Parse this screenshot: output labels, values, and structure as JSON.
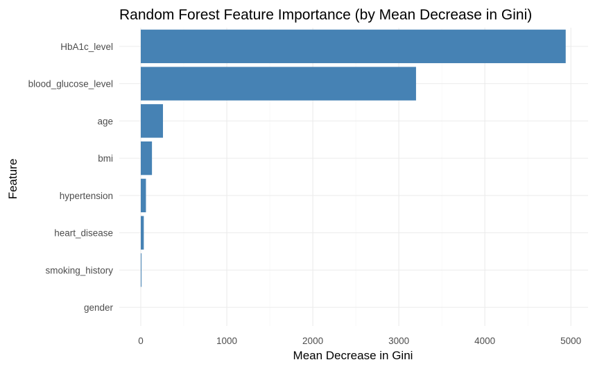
{
  "chart_data": {
    "type": "bar",
    "orientation": "horizontal",
    "title": "Random Forest Feature Importance (by Mean Decrease in Gini)",
    "xlabel": "Mean Decrease in Gini",
    "ylabel": "Feature",
    "categories": [
      "HbA1c_level",
      "blood_glucose_level",
      "age",
      "bmi",
      "hypertension",
      "heart_disease",
      "smoking_history",
      "gender"
    ],
    "values": [
      4940,
      3200,
      258,
      130,
      60,
      35,
      8,
      0
    ],
    "xlim": [
      -250,
      5200
    ],
    "xticks": [
      0,
      1000,
      2000,
      3000,
      4000,
      5000
    ],
    "xtick_labels": [
      "0",
      "1000",
      "2000",
      "3000",
      "4000",
      "5000"
    ],
    "grid": true,
    "bar_color": "#4682B4",
    "theme": "minimal"
  }
}
